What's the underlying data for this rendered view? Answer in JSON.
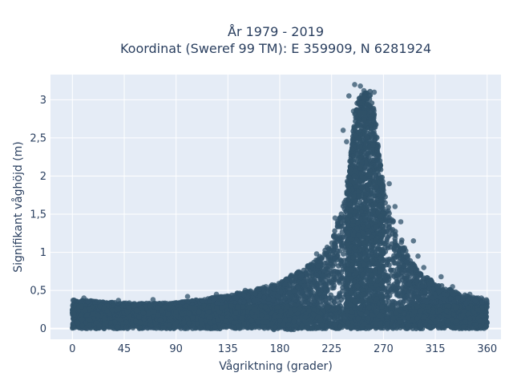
{
  "chart_data": {
    "type": "scatter",
    "title_line1": "År 1979 - 2019",
    "title_line2": "Koordinat (Sweref 99 TM): E 359909, N 6281924",
    "xlabel": "Vågriktning (grader)",
    "ylabel": "Signifikant våghöjd (m)",
    "xlim": [
      -19,
      372
    ],
    "ylim": [
      -0.14,
      3.33
    ],
    "x_ticks": [
      0,
      45,
      90,
      135,
      180,
      225,
      270,
      315,
      360
    ],
    "x_tick_labels": [
      "0",
      "45",
      "90",
      "135",
      "180",
      "225",
      "270",
      "315",
      "360"
    ],
    "y_ticks": [
      0,
      0.5,
      1,
      1.5,
      2,
      2.5,
      3
    ],
    "y_tick_labels": [
      "0",
      "0,5",
      "1",
      "1,5",
      "2",
      "2,5",
      "3"
    ],
    "grid": true,
    "marker_color": "#2f5169",
    "plot_background": "#e5ecf6",
    "series": [
      {
        "envelope_x": [
          0,
          20,
          45,
          60,
          90,
          110,
          135,
          160,
          180,
          200,
          215,
          225,
          232,
          240,
          245,
          250,
          255,
          260,
          265,
          270,
          275,
          280,
          285,
          290,
          300,
          315,
          330,
          345,
          360
        ],
        "envelope_ymax": [
          0.38,
          0.36,
          0.34,
          0.33,
          0.34,
          0.38,
          0.44,
          0.52,
          0.6,
          0.78,
          0.95,
          1.15,
          1.5,
          2.05,
          2.9,
          3.1,
          3.2,
          3.1,
          2.5,
          1.9,
          1.55,
          1.4,
          1.2,
          1.0,
          0.75,
          0.6,
          0.5,
          0.42,
          0.38
        ],
        "envelope_ymin": [
          0.0,
          0.0,
          0.0,
          0.0,
          0.0,
          0.0,
          0.0,
          0.0,
          -0.02,
          -0.02,
          0.0,
          0.0,
          0.0,
          0.0,
          0.0,
          0.0,
          0.0,
          0.0,
          0.0,
          0.0,
          0.0,
          0.0,
          0.0,
          0.0,
          0.0,
          0.0,
          0.0,
          0.0,
          0.0
        ],
        "outliers": [
          [
            240,
            3.05
          ],
          [
            245,
            3.2
          ],
          [
            250,
            3.18
          ],
          [
            253,
            3.12
          ],
          [
            262,
            3.1
          ],
          [
            258,
            3.05
          ],
          [
            235,
            2.6
          ],
          [
            238,
            2.45
          ],
          [
            265,
            2.2
          ],
          [
            275,
            1.9
          ],
          [
            280,
            1.6
          ],
          [
            285,
            1.4
          ],
          [
            296,
            1.15
          ],
          [
            300,
            0.95
          ],
          [
            305,
            0.8
          ],
          [
            320,
            0.68
          ],
          [
            330,
            0.55
          ],
          [
            345,
            0.45
          ],
          [
            212,
            0.98
          ],
          [
            205,
            0.82
          ],
          [
            190,
            0.7
          ],
          [
            168,
            0.55
          ],
          [
            150,
            0.5
          ],
          [
            125,
            0.45
          ],
          [
            100,
            0.42
          ],
          [
            70,
            0.38
          ],
          [
            40,
            0.37
          ],
          [
            10,
            0.4
          ],
          [
            355,
            0.4
          ],
          [
            228,
            1.45
          ],
          [
            244,
            2.85
          ]
        ]
      }
    ]
  }
}
